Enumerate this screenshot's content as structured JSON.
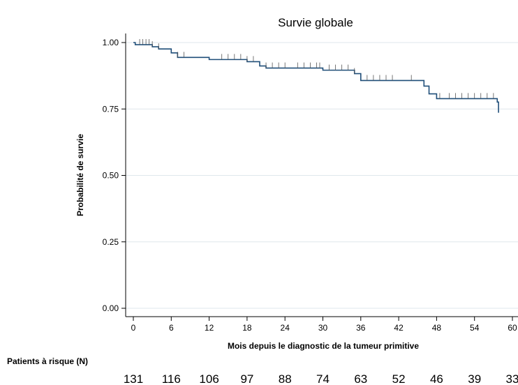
{
  "chart_data": {
    "type": "line",
    "title": "Survie globale",
    "xlabel": "Mois depuis le diagnostic de la tumeur primitive",
    "ylabel": "Probabilité de survie",
    "xlim": [
      0,
      60
    ],
    "ylim": [
      0,
      1
    ],
    "xticks": [
      0,
      6,
      12,
      18,
      24,
      30,
      36,
      42,
      48,
      54,
      60
    ],
    "yticks": [
      "0.00",
      "0.25",
      "0.50",
      "0.75",
      "1.00"
    ],
    "grid": "horizontal",
    "line_color": "#1f4e79",
    "series": [
      {
        "x": [
          0,
          0.3,
          3,
          4,
          6,
          7,
          12,
          18,
          20,
          21,
          30,
          35,
          36,
          46,
          46.8,
          48,
          57.6,
          57.8
        ],
        "y": [
          1.0,
          0.992,
          0.984,
          0.976,
          0.961,
          0.944,
          0.936,
          0.928,
          0.912,
          0.904,
          0.896,
          0.883,
          0.857,
          0.836,
          0.807,
          0.789,
          0.776,
          0.736
        ],
        "censored": [
          1,
          1.5,
          2,
          2.5,
          3,
          4,
          7,
          8,
          14,
          15,
          16,
          17,
          18,
          19,
          21,
          22,
          23,
          24,
          26,
          27,
          28,
          29,
          29.5,
          31,
          32,
          33,
          34,
          35,
          37,
          38,
          39,
          40,
          41,
          44,
          48.5,
          50,
          51,
          52,
          53,
          54,
          55,
          56,
          57
        ]
      }
    ],
    "risk_table": {
      "label": "Patients à risque (N)",
      "times": [
        0,
        6,
        12,
        18,
        24,
        30,
        36,
        42,
        48,
        54,
        60
      ],
      "counts": [
        "131",
        "116",
        "106",
        "97",
        "88",
        "74",
        "63",
        "52",
        "46",
        "39",
        "33"
      ]
    }
  }
}
